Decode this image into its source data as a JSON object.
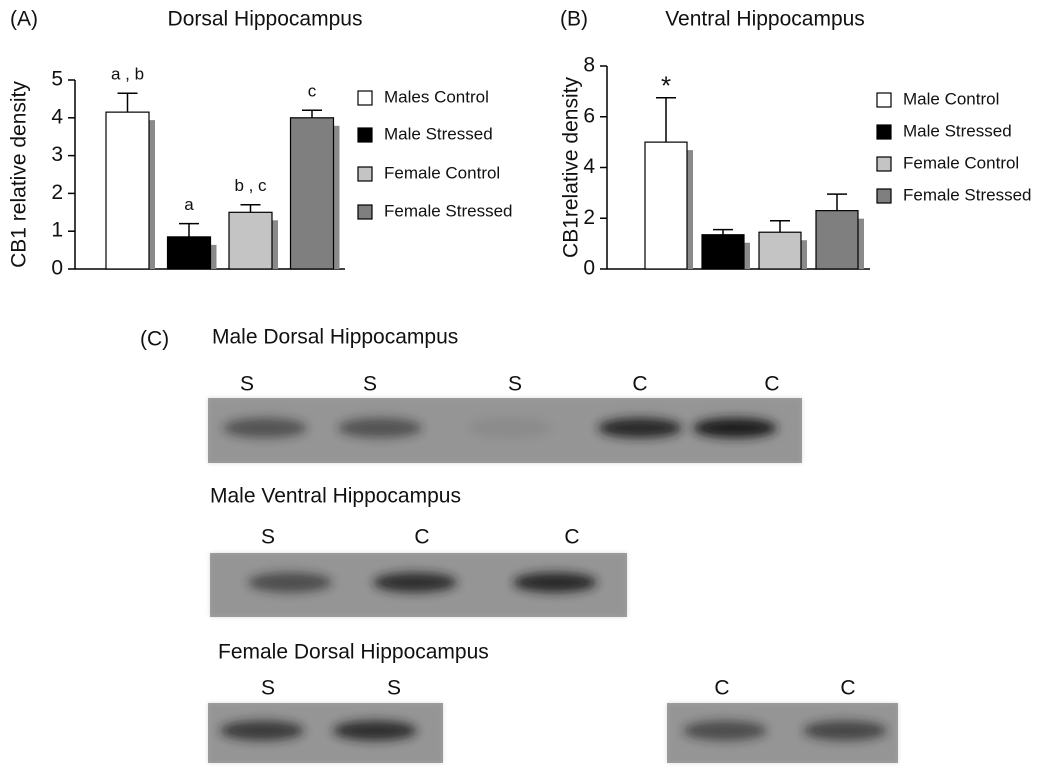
{
  "chart_data": [
    {
      "type": "bar",
      "panel": "(A)",
      "title": "Dorsal Hippocampus",
      "y_label": "CB1 relative density",
      "categories": [
        "Males Control",
        "Male Stressed",
        "Female Control",
        "Female Stressed"
      ],
      "values": [
        4.15,
        0.85,
        1.5,
        4.0
      ],
      "errors": [
        0.5,
        0.35,
        0.2,
        0.2
      ],
      "annotations": [
        "a , b",
        "a",
        "b , c",
        "c"
      ],
      "colors": [
        "#ffffff",
        "#000000",
        "#c4c4c4",
        "#7f7f7f"
      ],
      "ylim": [
        0,
        5
      ],
      "yticks": [
        0,
        1,
        2,
        3,
        4,
        5
      ]
    },
    {
      "type": "bar",
      "panel": "(B)",
      "title": "Ventral Hippocampus",
      "y_label": "CB1relative density",
      "categories": [
        "Male Control",
        "Male Stressed",
        "Female Control",
        "Female Stressed"
      ],
      "values": [
        5.0,
        1.35,
        1.45,
        2.3
      ],
      "errors": [
        1.75,
        0.2,
        0.45,
        0.65
      ],
      "annotations": [
        "*",
        null,
        null,
        null
      ],
      "colors": [
        "#ffffff",
        "#000000",
        "#c4c4c4",
        "#7f7f7f"
      ],
      "ylim": [
        0,
        8
      ],
      "yticks": [
        0,
        2,
        4,
        6,
        8
      ]
    }
  ],
  "blots": {
    "panel": "(C)",
    "groups": [
      {
        "title": "Male Dorsal Hippocampus",
        "lanes": [
          "S",
          "S",
          "S",
          "C",
          "C"
        ]
      },
      {
        "title": "Male Ventral Hippocampus",
        "lanes": [
          "S",
          "C",
          "C"
        ]
      },
      {
        "title": "Female Dorsal Hippocampus",
        "lanes": [
          "S",
          "S",
          "C",
          "C"
        ]
      }
    ]
  }
}
